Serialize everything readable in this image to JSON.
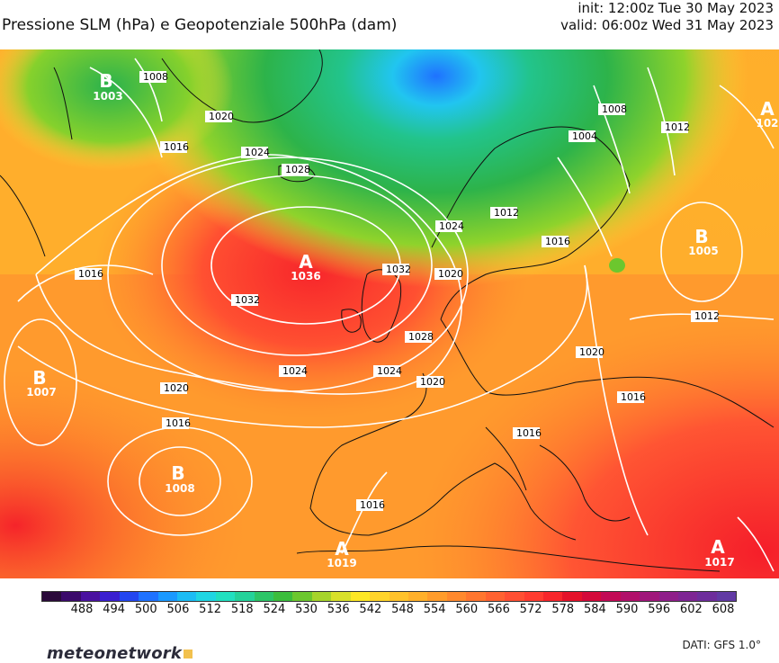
{
  "header": {
    "title": "Pressione SLM (hPa) e Geopotenziale 500hPa (dam)",
    "init": "init: 12:00z Tue 30 May 2023",
    "valid": "valid: 06:00z Wed 31 May 2023"
  },
  "map": {
    "pressure_centers": [
      {
        "type": "B",
        "value": "1003"
      },
      {
        "type": "A",
        "value": "1036"
      },
      {
        "type": "B",
        "value": "1005"
      },
      {
        "type": "A",
        "value": "102"
      },
      {
        "type": "B",
        "value": "1007"
      },
      {
        "type": "B",
        "value": "1008"
      },
      {
        "type": "A",
        "value": "1019"
      },
      {
        "type": "A",
        "value": "1017"
      }
    ],
    "isobar_labels": [
      "1008",
      "1016",
      "1020",
      "1024",
      "1028",
      "1012",
      "1004",
      "1008",
      "1012",
      "1016",
      "1032",
      "1032",
      "1020",
      "1028",
      "1024",
      "1024",
      "1020",
      "1020",
      "1016",
      "1012",
      "1016",
      "1016",
      "1016",
      "1016",
      "1020",
      "1024"
    ]
  },
  "colorbar": {
    "ticks": [
      "488",
      "494",
      "500",
      "506",
      "512",
      "518",
      "524",
      "530",
      "536",
      "542",
      "548",
      "554",
      "560",
      "566",
      "572",
      "578",
      "584",
      "590",
      "596",
      "602",
      "608"
    ],
    "colors": [
      "#2a0a3a",
      "#3b0a6b",
      "#4a12a0",
      "#3a1fd0",
      "#2346f0",
      "#1f72ff",
      "#1a99ff",
      "#1bbcf5",
      "#1fd6e3",
      "#21e0c0",
      "#24d29a",
      "#2cc567",
      "#3bbd3c",
      "#6cc72e",
      "#a6d42b",
      "#d8e02a",
      "#fde725",
      "#ffd42a",
      "#ffc22a",
      "#ffb02a",
      "#ff9c2b",
      "#ff892d",
      "#ff762f",
      "#ff6231",
      "#ff4f33",
      "#ff3c30",
      "#f7262b",
      "#e5122a",
      "#d40a3a",
      "#c20a55",
      "#b1106a",
      "#a0177b",
      "#8f1e8a",
      "#7e2594",
      "#6e2d9c",
      "#613aa4"
    ]
  },
  "footer": {
    "logo": "meteonetwork",
    "source": "DATI:  GFS  1.0°"
  }
}
